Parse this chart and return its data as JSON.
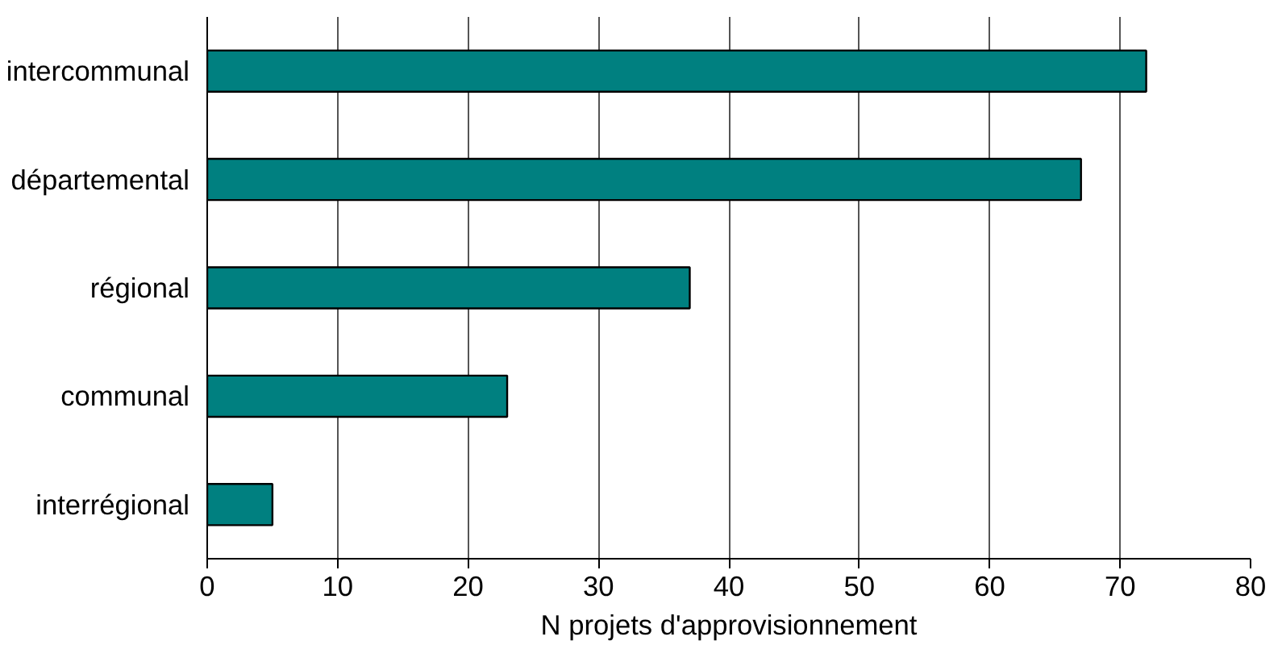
{
  "chart_data": {
    "type": "bar",
    "orientation": "horizontal",
    "xlabel": "N projets d'approvisionnement",
    "categories": [
      "intercommunal",
      "départemental",
      "régional",
      "communal",
      "interrégional"
    ],
    "values": [
      72,
      67,
      37,
      23,
      5
    ],
    "color": "#008080",
    "xlim": [
      0,
      80
    ],
    "xticks": [
      0,
      10,
      20,
      30,
      40,
      50,
      60,
      70,
      80
    ],
    "grid": "x"
  }
}
